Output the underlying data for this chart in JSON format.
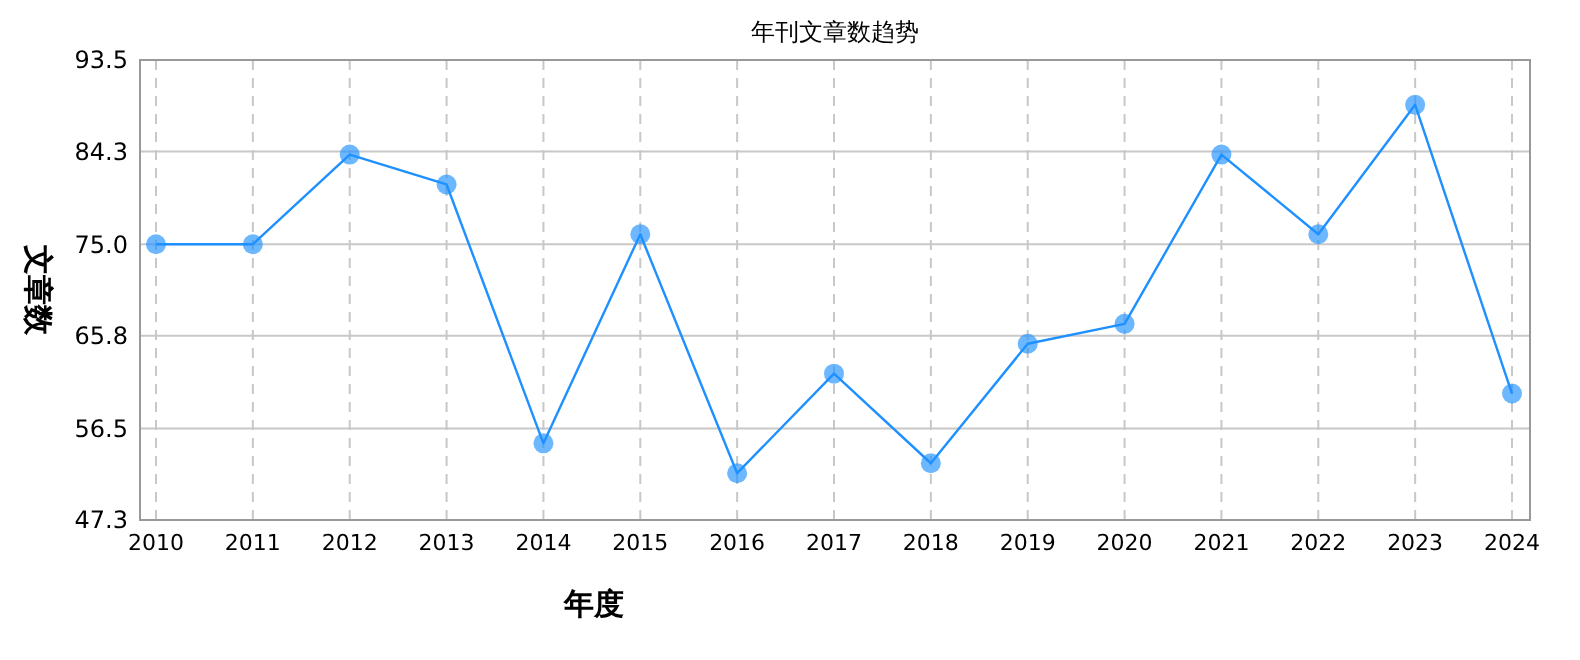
{
  "chart_data": {
    "type": "line",
    "title": "年刊文章数趋势",
    "xlabel": "年度",
    "ylabel": "文章数",
    "categories": [
      "2010",
      "2011",
      "2012",
      "2013",
      "2014",
      "2015",
      "2016",
      "2017",
      "2018",
      "2019",
      "2020",
      "2021",
      "2022",
      "2023",
      "2024"
    ],
    "series": [
      {
        "color": "#1e90ff",
        "values": [
          75,
          75,
          84,
          81,
          55,
          76,
          52,
          62,
          53,
          65,
          67,
          84,
          76,
          89,
          60
        ]
      }
    ],
    "ylim": [
      47.3,
      93.5
    ],
    "yticks": [
      47.3,
      56.5,
      65.8,
      {
        "value": 75,
        "label": "75.0"
      },
      84.3,
      93.5
    ],
    "grid": true,
    "marker": "circle",
    "line_style": "solid"
  }
}
